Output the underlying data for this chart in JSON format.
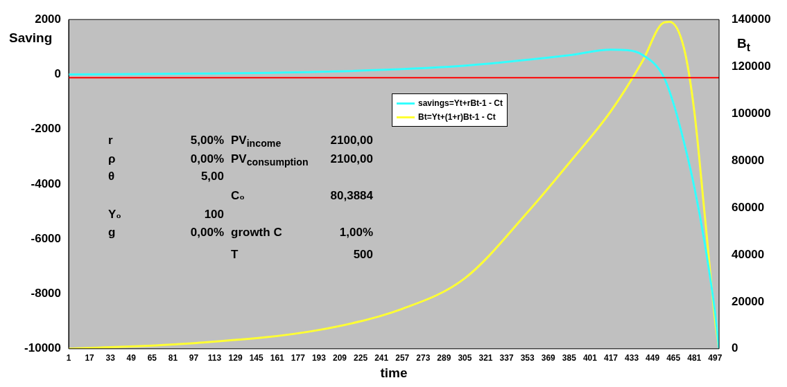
{
  "chart_data": {
    "type": "line",
    "xlabel": "time",
    "ylabel": "Saving",
    "y2label": "B$_{t}$",
    "xlim": [
      1,
      500
    ],
    "xticks": [
      1,
      17,
      33,
      49,
      65,
      81,
      97,
      113,
      129,
      145,
      161,
      177,
      193,
      209,
      225,
      241,
      257,
      273,
      289,
      305,
      321,
      337,
      353,
      369,
      385,
      401,
      417,
      433,
      449,
      465,
      481,
      497
    ],
    "ylim": [
      -10000,
      2000
    ],
    "yticks": [
      -10000,
      -8000,
      -6000,
      -4000,
      -2000,
      0,
      2000
    ],
    "y2lim": [
      0,
      140000
    ],
    "y2ticks": [
      0,
      20000,
      40000,
      60000,
      80000,
      100000,
      120000,
      140000
    ],
    "grid": false,
    "legend": "top right",
    "marker": "none",
    "line_style": "solid",
    "series": [
      {
        "name": "savings=Yt+rBt-1 - Ct",
        "color": "#33ffff",
        "x": [
          1,
          100,
          200,
          300,
          385,
          417,
          430,
          441,
          457,
          465,
          473,
          481,
          489,
          497,
          500
        ],
        "values": [
          0,
          30,
          100,
          300,
          700,
          900,
          880,
          720,
          -40,
          -1050,
          -2450,
          -4100,
          -6150,
          -8700,
          -10000
        ]
      },
      {
        "name": "Bt=Yt+(1+r)Bt-1 - Ct",
        "color": "#ffff33",
        "axis": "y2",
        "x": [
          1,
          97,
          193,
          257,
          305,
          353,
          385,
          417,
          441,
          457,
          462,
          473,
          481,
          489,
          497,
          500
        ],
        "values": [
          0,
          2400,
          8000,
          17000,
          30000,
          58000,
          79000,
          101000,
          122000,
          138500,
          139000,
          128000,
          101000,
          57000,
          12000,
          0
        ]
      }
    ],
    "ref_lines": [
      {
        "axis": "y",
        "value": -120,
        "color": "#ff0000"
      }
    ],
    "annotations": [
      "r",
      "5,00%",
      "PV$_{income}$",
      "2100,00",
      "ρ",
      "0,00%",
      "PV$_{consumption}$",
      "2100,00",
      "θ",
      "5,00",
      "C₀",
      "80,3884",
      "Y₀",
      "100",
      "g",
      "0,00%",
      "growth C",
      "1,00%",
      "T",
      "500"
    ]
  }
}
